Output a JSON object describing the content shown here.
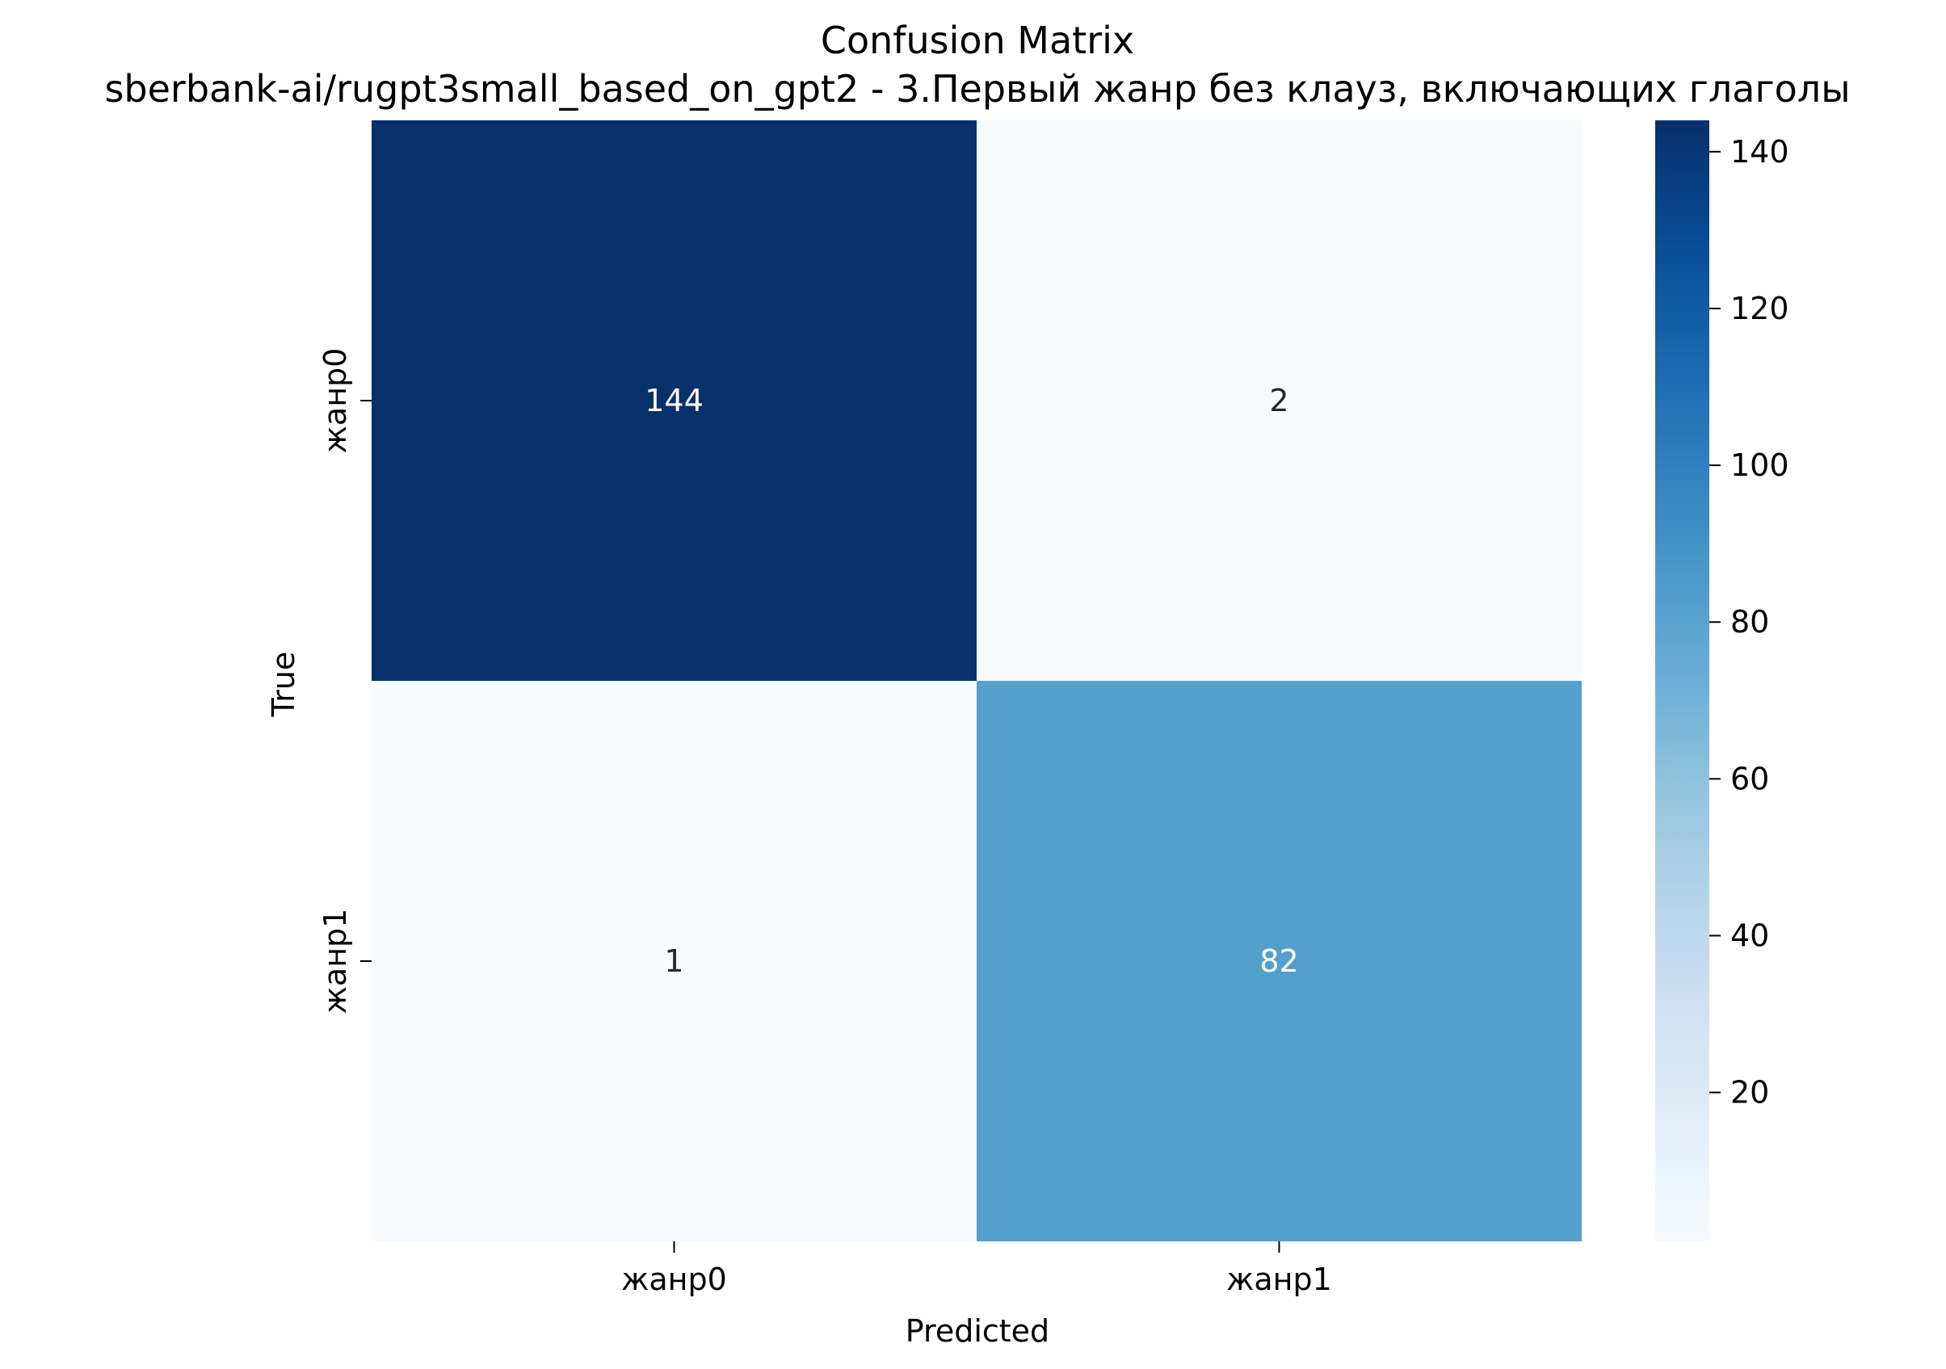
{
  "chart_data": {
    "type": "heatmap",
    "title": "Confusion Matrix",
    "subtitle": "sberbank-ai/rugpt3small_based_on_gpt2 - 3.Первый жанр без клауз, включающих глаголы",
    "xlabel": "Predicted",
    "ylabel": "True",
    "x_categories": [
      "жанр0",
      "жанр1"
    ],
    "y_categories": [
      "жанр0",
      "жанр1"
    ],
    "values": [
      [
        144,
        2
      ],
      [
        1,
        82
      ]
    ],
    "colormap": "Blues",
    "colorbar": {
      "min": 1,
      "max": 144,
      "ticks": [
        20,
        40,
        60,
        80,
        100,
        120,
        140
      ]
    },
    "grid": false
  }
}
